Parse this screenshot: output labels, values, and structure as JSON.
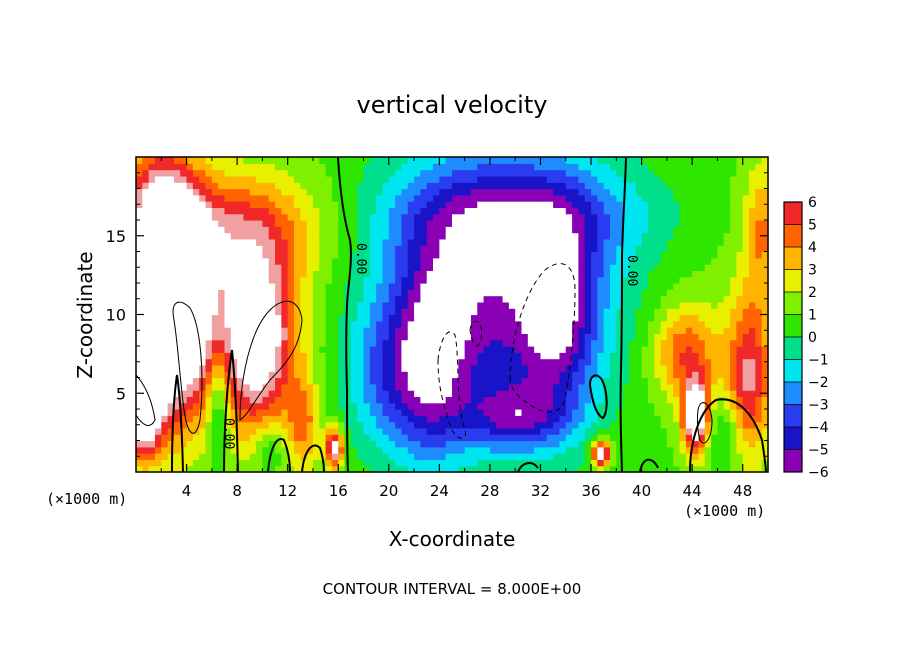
{
  "chart_data": {
    "type": "heatmap",
    "title": "vertical velocity",
    "xlabel": "X-coordinate",
    "ylabel": "Z-coordinate",
    "x_units": "(×1000 m)",
    "z_units": "(×1000 m)",
    "footer": "CONTOUR INTERVAL = 8.000E+00",
    "xlim": [
      0,
      50
    ],
    "ylim": [
      0,
      20
    ],
    "x_ticks": [
      4,
      8,
      12,
      16,
      20,
      24,
      28,
      32,
      36,
      40,
      44,
      48
    ],
    "y_ticks": [
      5,
      10,
      15
    ],
    "colorbar_ticks": [
      6,
      5,
      4,
      3,
      2,
      1,
      0,
      -1,
      -2,
      -3,
      -4,
      -5,
      -6
    ],
    "colorbar_tick_labels": [
      "6",
      "5",
      "4",
      "3",
      "2",
      "1",
      "0",
      "−1",
      "−2",
      "−3",
      "−4",
      "−5",
      "−6"
    ],
    "contour_labels": [
      "0.00",
      "0.00",
      "0.00"
    ],
    "colorscale": [
      {
        "value": -6,
        "color": "#8a00b5"
      },
      {
        "value": -5,
        "color": "#1a14c8"
      },
      {
        "value": -4,
        "color": "#2a3cf0"
      },
      {
        "value": -3,
        "color": "#1e8cff"
      },
      {
        "value": -2,
        "color": "#00e6f0"
      },
      {
        "value": -1,
        "color": "#00e08c"
      },
      {
        "value": 0,
        "color": "#2ee600"
      },
      {
        "value": 1,
        "color": "#7ef000"
      },
      {
        "value": 2,
        "color": "#e8f000"
      },
      {
        "value": 3,
        "color": "#ffb400"
      },
      {
        "value": 4,
        "color": "#ff6400"
      },
      {
        "value": 5,
        "color": "#f02828"
      },
      {
        "value": 6,
        "color": "#f0a0a0"
      }
    ],
    "field_features": [
      {
        "x": 1.8,
        "z": 12.0,
        "sx": 1.8,
        "sz": 5.5,
        "amp": 9
      },
      {
        "x": 4.0,
        "z": 10.5,
        "sx": 1.6,
        "sz": 4.5,
        "amp": 7
      },
      {
        "x": 9.5,
        "z": 8.5,
        "sx": 2.2,
        "sz": 4.0,
        "amp": 8
      },
      {
        "x": 7.0,
        "z": 15.5,
        "sx": 5.5,
        "sz": 2.5,
        "amp": 4
      },
      {
        "x": 0.5,
        "z": 4.0,
        "sx": 1.0,
        "sz": 2.0,
        "amp": 8
      },
      {
        "x": 6.5,
        "z": 4.5,
        "sx": 0.6,
        "sz": 2.5,
        "amp": -3
      },
      {
        "x": 10.5,
        "z": 1.5,
        "sx": 0.8,
        "sz": 1.2,
        "amp": -2
      },
      {
        "x": 13.3,
        "z": 3.0,
        "sx": 0.9,
        "sz": 2.0,
        "amp": 3
      },
      {
        "x": 15.7,
        "z": 1.5,
        "sx": 0.5,
        "sz": 0.9,
        "amp": 7
      },
      {
        "x": 28.5,
        "z": 11.5,
        "sx": 6.5,
        "sz": 6.0,
        "amp": -7
      },
      {
        "x": 30.5,
        "z": 16.5,
        "sx": 7.5,
        "sz": 2.2,
        "amp": -3
      },
      {
        "x": 23.5,
        "z": 7.0,
        "sx": 2.0,
        "sz": 4.5,
        "amp": -4
      },
      {
        "x": 33.5,
        "z": 10.0,
        "sx": 2.0,
        "sz": 4.0,
        "amp": -4
      },
      {
        "x": 20.0,
        "z": 6.0,
        "sx": 2.5,
        "sz": 3.5,
        "amp": -3
      },
      {
        "x": 30.0,
        "z": 3.5,
        "sx": 3.0,
        "sz": 1.5,
        "amp": -4
      },
      {
        "x": 36.8,
        "z": 1.2,
        "sx": 0.5,
        "sz": 0.6,
        "amp": 8
      },
      {
        "x": 43.5,
        "z": 7.5,
        "sx": 1.8,
        "sz": 2.0,
        "amp": 4
      },
      {
        "x": 44.3,
        "z": 3.5,
        "sx": 0.7,
        "sz": 1.6,
        "amp": 9
      },
      {
        "x": 48.5,
        "z": 6.0,
        "sx": 1.2,
        "sz": 3.5,
        "amp": 5
      },
      {
        "x": 49.5,
        "z": 15.5,
        "sx": 1.0,
        "sz": 3.0,
        "amp": 3
      },
      {
        "x": 46.5,
        "z": 2.5,
        "sx": 1.2,
        "sz": 1.5,
        "amp": -1.5
      }
    ]
  }
}
